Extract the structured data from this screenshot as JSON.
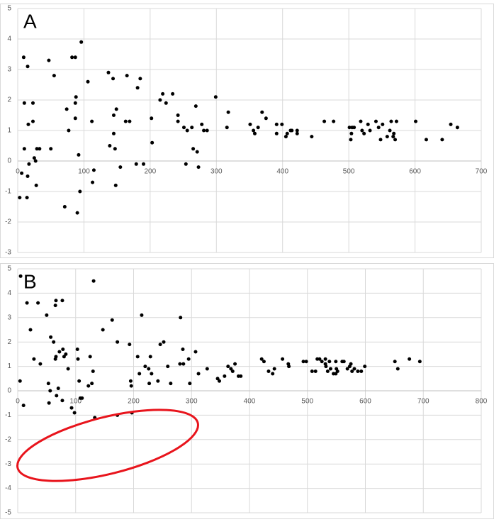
{
  "chart_data": [
    {
      "type": "scatter",
      "title": "A",
      "color": "#000000",
      "grid": true,
      "xlim": [
        0,
        700
      ],
      "xticks": [
        0,
        100,
        200,
        300,
        400,
        500,
        600,
        700
      ],
      "ylim": [
        -3,
        5
      ],
      "yticks": [
        -3,
        -2,
        -1,
        0,
        1,
        2,
        3,
        4,
        5
      ],
      "x": [
        3,
        6,
        9,
        10,
        10,
        15,
        15,
        14,
        16,
        17,
        23,
        23,
        25,
        27,
        28,
        29,
        33,
        47,
        50,
        55,
        71,
        74,
        77,
        82,
        87,
        87,
        88,
        87,
        90,
        92,
        94,
        96,
        106,
        112,
        115,
        113,
        137,
        139,
        144,
        145,
        149,
        145,
        147,
        148,
        155,
        163,
        165,
        169,
        179,
        181,
        185,
        190,
        202,
        203,
        215,
        219,
        224,
        234,
        242,
        242,
        251,
        254,
        256,
        263,
        265,
        269,
        271,
        273,
        278,
        281,
        286,
        299,
        316,
        318,
        351,
        356,
        358,
        363,
        369,
        375,
        391,
        391,
        399,
        405,
        407,
        412,
        414,
        422,
        422,
        444,
        463,
        477,
        501,
        503,
        504,
        505,
        508,
        518,
        520,
        523,
        529,
        532,
        541,
        545,
        548,
        551,
        558,
        562,
        564,
        567,
        568,
        570,
        572,
        601,
        617,
        641,
        654,
        664
      ],
      "y": [
        -1.2,
        -0.4,
        3.4,
        1.9,
        0.4,
        3.1,
        -0.5,
        -1.2,
        1.2,
        -0.1,
        1.3,
        1.9,
        0.1,
        0,
        -0.8,
        0.4,
        0.4,
        3.3,
        0.4,
        2.8,
        -1.5,
        1.7,
        1.0,
        3.4,
        3.4,
        1.9,
        2.1,
        1.4,
        -1.7,
        0.2,
        -1.0,
        3.9,
        2.6,
        1.3,
        -0.3,
        -0.7,
        2.9,
        0.5,
        2.7,
        1.5,
        1.7,
        0.9,
        0.4,
        -0.8,
        -0.2,
        1.3,
        2.8,
        1.3,
        -0.1,
        2.4,
        2.7,
        -0.1,
        1.4,
        0.6,
        2.0,
        2.2,
        1.9,
        2.2,
        1.5,
        1.3,
        1.1,
        -0.1,
        1.0,
        1.1,
        0.4,
        1.8,
        0.3,
        -0.2,
        1.2,
        1.0,
        1.0,
        2.1,
        1.1,
        1.6,
        1.2,
        1.0,
        0.9,
        1.1,
        1.6,
        1.4,
        1.2,
        0.9,
        1.2,
        0.8,
        0.9,
        1.0,
        1.0,
        0.9,
        1.0,
        0.8,
        1.3,
        1.3,
        1.1,
        0.7,
        0.9,
        1.1,
        1.1,
        1.3,
        1.0,
        0.9,
        1.2,
        1.0,
        1.3,
        1.1,
        0.7,
        1.2,
        0.8,
        1.0,
        1.3,
        0.8,
        0.9,
        0.7,
        1.3,
        1.3,
        0.7,
        0.7,
        1.2,
        1.1
      ]
    },
    {
      "type": "scatter",
      "title": "B",
      "color": "#000000",
      "grid": true,
      "xlim": [
        0,
        800
      ],
      "xticks": [
        0,
        100,
        200,
        300,
        400,
        500,
        600,
        700,
        800
      ],
      "ylim": [
        -5,
        5
      ],
      "yticks": [
        -5,
        -4,
        -3,
        -2,
        -1,
        0,
        1,
        2,
        3,
        4,
        5
      ],
      "x": [
        5,
        4,
        10,
        16,
        22,
        28,
        35,
        39,
        50,
        53,
        54,
        56,
        57,
        62,
        65,
        66,
        65,
        66,
        67,
        70,
        72,
        77,
        77,
        78,
        80,
        83,
        87,
        93,
        98,
        103,
        104,
        106,
        108,
        111,
        122,
        125,
        128,
        130,
        131,
        133,
        147,
        163,
        172,
        172,
        193,
        195,
        196,
        197,
        207,
        210,
        214,
        220,
        226,
        227,
        229,
        231,
        242,
        246,
        252,
        259,
        264,
        280,
        281,
        285,
        286,
        295,
        297,
        307,
        312,
        327,
        345,
        348,
        357,
        363,
        368,
        371,
        375,
        381,
        385,
        421,
        425,
        433,
        440,
        443,
        457,
        467,
        468,
        493,
        498,
        508,
        514,
        517,
        521,
        525,
        531,
        532,
        531,
        535,
        538,
        540,
        545,
        549,
        550,
        552,
        549,
        560,
        563,
        569,
        573,
        575,
        577,
        581,
        587,
        593,
        599,
        651,
        656,
        676,
        694
      ],
      "y": [
        4.7,
        0.4,
        -0.6,
        3.6,
        2.5,
        1.3,
        3.6,
        1.1,
        3.1,
        0.3,
        -0.5,
        0,
        2.2,
        2.0,
        3.5,
        3.7,
        1.3,
        1.4,
        -0.2,
        0.1,
        1.6,
        3.7,
        -0.4,
        1.7,
        1.4,
        1.5,
        0.9,
        -0.7,
        -0.9,
        1.7,
        1.3,
        0.4,
        -0.3,
        -0.3,
        0.2,
        1.4,
        0.3,
        0.8,
        4.5,
        -1.1,
        2.5,
        2.9,
        2.0,
        -1.0,
        1.9,
        0.4,
        0.2,
        -0.9,
        1.4,
        0.7,
        3.1,
        1.0,
        0.9,
        0.3,
        1.4,
        0.7,
        0.4,
        1.9,
        2.0,
        1.0,
        0.3,
        1.1,
        3.0,
        1.7,
        1.1,
        1.3,
        0.3,
        1.6,
        0.7,
        0.9,
        0.5,
        0.4,
        0.6,
        1.0,
        0.9,
        0.8,
        1.1,
        0.6,
        0.6,
        1.3,
        1.2,
        0.8,
        0.7,
        0.9,
        1.3,
        1.1,
        1.0,
        1.2,
        1.2,
        0.8,
        0.8,
        1.3,
        1.3,
        1.2,
        1.1,
        1.0,
        1.3,
        0.8,
        1.2,
        0.9,
        0.7,
        1.2,
        0.9,
        0.8,
        0.7,
        1.2,
        1.2,
        0.9,
        1.0,
        1.1,
        0.8,
        0.9,
        0.8,
        0.8,
        1.0,
        1.2,
        0.9,
        1.3,
        1.2
      ]
    }
  ]
}
